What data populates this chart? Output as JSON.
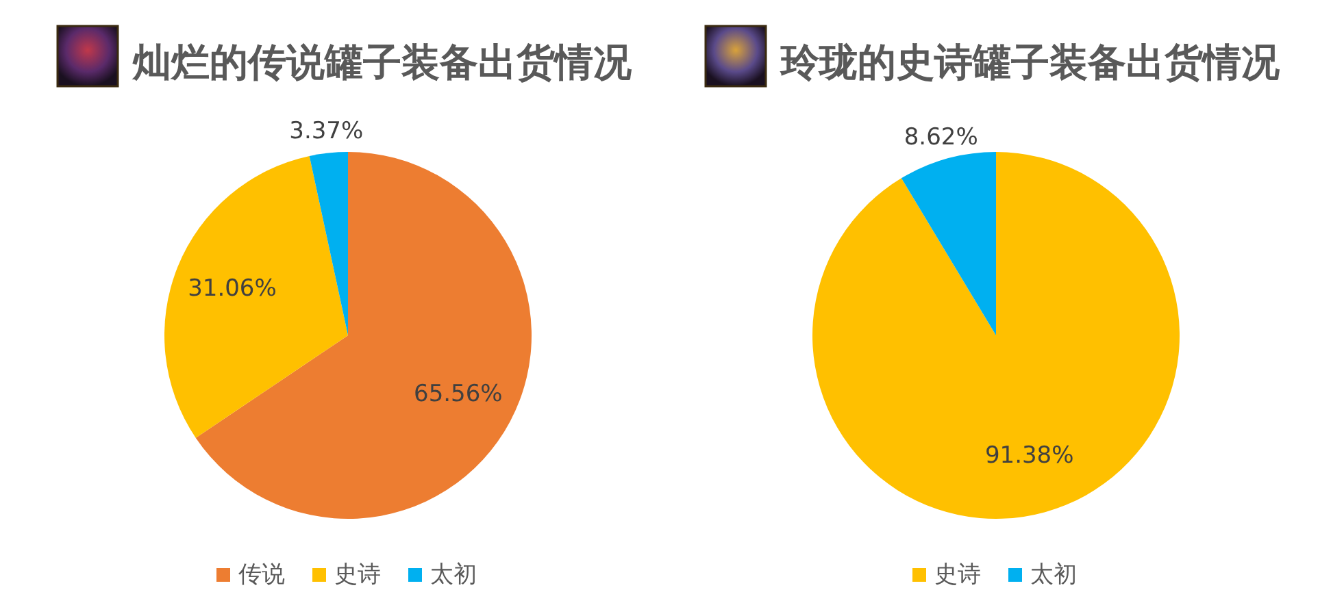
{
  "chart_data": [
    {
      "type": "pie",
      "title": "灿烂的传说罐子装备出货情况",
      "categories": [
        "传说",
        "史诗",
        "太初"
      ],
      "values": [
        65.56,
        31.06,
        3.37
      ],
      "colors": [
        "#ed7d31",
        "#ffc000",
        "#00b0f0"
      ],
      "value_labels": [
        "65.56%",
        "31.06%",
        "3.37%"
      ],
      "legend": "bottom"
    },
    {
      "type": "pie",
      "title": "玲珑的史诗罐子装备出货情况",
      "categories": [
        "史诗",
        "太初"
      ],
      "values": [
        91.38,
        8.62
      ],
      "colors": [
        "#ffc000",
        "#00b0f0"
      ],
      "value_labels": [
        "91.38%",
        "8.62%"
      ],
      "legend": "bottom"
    }
  ]
}
